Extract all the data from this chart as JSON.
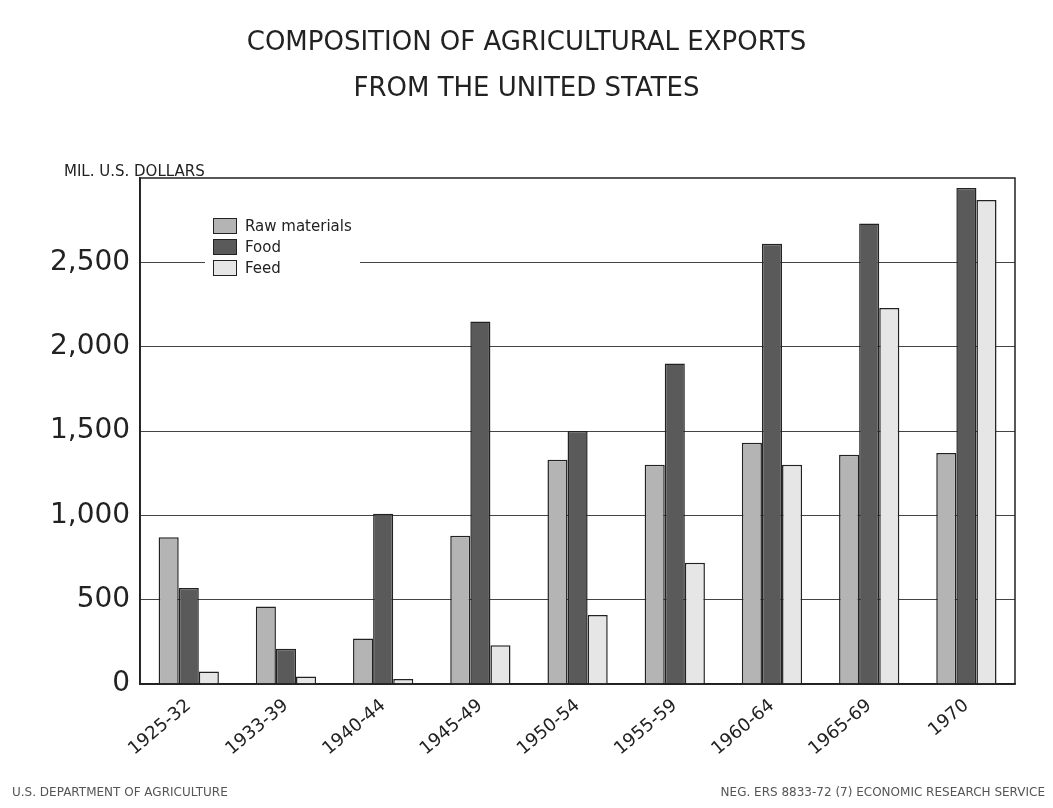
{
  "chart_data": {
    "type": "bar",
    "title": "COMPOSITION OF AGRICULTURAL EXPORTS FROM THE UNITED STATES",
    "ylabel": "MIL. U.S. DOLLARS",
    "categories": [
      "1925-32",
      "1933-39",
      "1940-44",
      "1945-49",
      "1950-54",
      "1955-59",
      "1960-64",
      "1965-69",
      "1970"
    ],
    "series": [
      {
        "name": "Raw materials",
        "color": "#b4b4b4",
        "values": [
          870,
          460,
          270,
          880,
          1330,
          1300,
          1430,
          1360,
          1370
        ]
      },
      {
        "name": "Food",
        "color": "#5a5a5a",
        "values": [
          570,
          210,
          1010,
          2150,
          1500,
          1900,
          2610,
          2730,
          2940
        ]
      },
      {
        "name": "Feed",
        "color": "#e6e6e6",
        "values": [
          75,
          45,
          30,
          230,
          410,
          720,
          1300,
          2230,
          2870
        ]
      }
    ],
    "ylim": [
      0,
      3000
    ],
    "yticks": [
      {
        "value": 0,
        "label": "0"
      },
      {
        "value": 500,
        "label": "500"
      },
      {
        "value": 1000,
        "label": "1,000"
      },
      {
        "value": 1500,
        "label": "1,500"
      },
      {
        "value": 2000,
        "label": "2,000"
      },
      {
        "value": 2500,
        "label": "2,500"
      }
    ],
    "grid": "y",
    "legend": "top left",
    "annotations": [
      "U.S. DEPARTMENT OF AGRICULTURE",
      "NEG. ERS 8833-72 (7) ECONOMIC RESEARCH SERVICE"
    ]
  }
}
